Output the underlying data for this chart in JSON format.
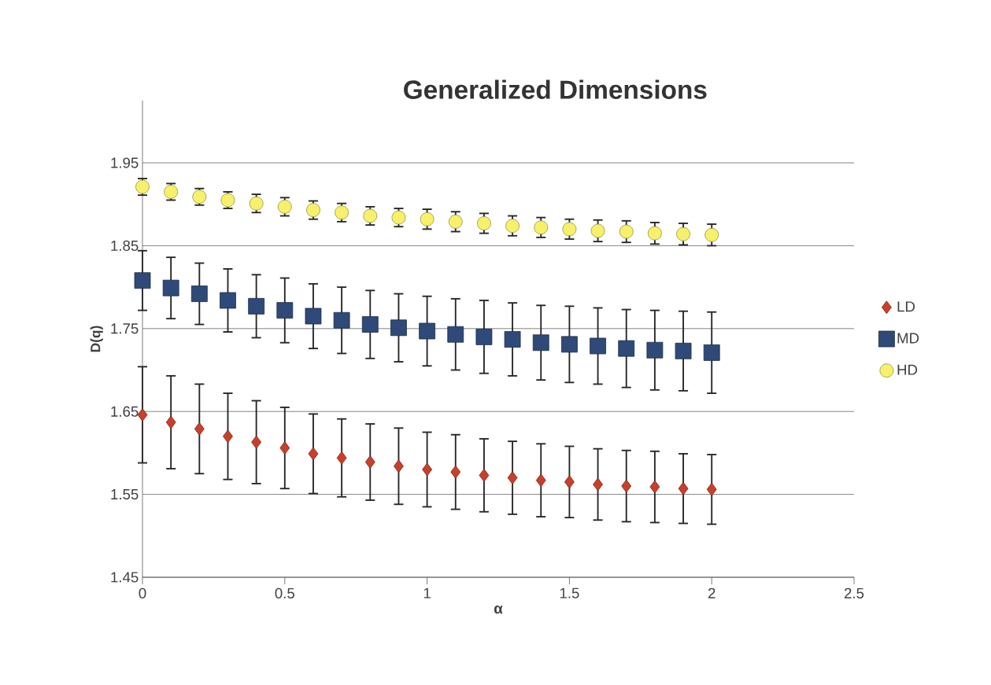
{
  "chart_data": {
    "type": "scatter",
    "title": "Generalized Dimensions",
    "xlabel": "α",
    "ylabel": "D(q)",
    "x": [
      0,
      0.1,
      0.2,
      0.3,
      0.4,
      0.5,
      0.6,
      0.7,
      0.8,
      0.9,
      1,
      1.1,
      1.2,
      1.3,
      1.4,
      1.5,
      1.6,
      1.7,
      1.8,
      1.9,
      2
    ],
    "xlim": [
      0,
      2.5
    ],
    "xticks": [
      0,
      0.5,
      1,
      1.5,
      2,
      2.5
    ],
    "ylim": [
      1.45,
      2.025
    ],
    "yticks": [
      1.45,
      1.55,
      1.65,
      1.75,
      1.85,
      1.95
    ],
    "grid": "y",
    "legend": "right",
    "series": [
      {
        "name": "LD",
        "color": "#c8402a",
        "marker": "diamond",
        "values": [
          1.646,
          1.637,
          1.629,
          1.62,
          1.613,
          1.606,
          1.599,
          1.594,
          1.589,
          1.584,
          1.58,
          1.577,
          1.573,
          1.57,
          1.567,
          1.565,
          1.562,
          1.56,
          1.559,
          1.557,
          1.556
        ],
        "errors": [
          0.058,
          0.056,
          0.054,
          0.052,
          0.05,
          0.049,
          0.048,
          0.047,
          0.046,
          0.046,
          0.045,
          0.045,
          0.044,
          0.044,
          0.044,
          0.043,
          0.043,
          0.043,
          0.043,
          0.042,
          0.042
        ]
      },
      {
        "name": "MD",
        "color": "#2f4a78",
        "marker": "square",
        "values": [
          1.808,
          1.799,
          1.792,
          1.784,
          1.777,
          1.772,
          1.765,
          1.76,
          1.755,
          1.751,
          1.747,
          1.743,
          1.74,
          1.737,
          1.733,
          1.731,
          1.729,
          1.726,
          1.724,
          1.723,
          1.721
        ],
        "errors": [
          0.036,
          0.037,
          0.037,
          0.038,
          0.038,
          0.039,
          0.039,
          0.04,
          0.041,
          0.041,
          0.042,
          0.043,
          0.044,
          0.044,
          0.045,
          0.046,
          0.046,
          0.047,
          0.048,
          0.048,
          0.049
        ]
      },
      {
        "name": "HD",
        "color": "#f7f06a",
        "marker": "circle",
        "values": [
          1.921,
          1.915,
          1.909,
          1.905,
          1.901,
          1.897,
          1.893,
          1.89,
          1.886,
          1.884,
          1.882,
          1.879,
          1.877,
          1.874,
          1.872,
          1.87,
          1.868,
          1.867,
          1.865,
          1.864,
          1.863
        ],
        "errors": [
          0.01,
          0.01,
          0.01,
          0.01,
          0.011,
          0.011,
          0.011,
          0.011,
          0.011,
          0.011,
          0.012,
          0.012,
          0.012,
          0.012,
          0.012,
          0.012,
          0.013,
          0.013,
          0.013,
          0.013,
          0.013
        ]
      }
    ]
  }
}
